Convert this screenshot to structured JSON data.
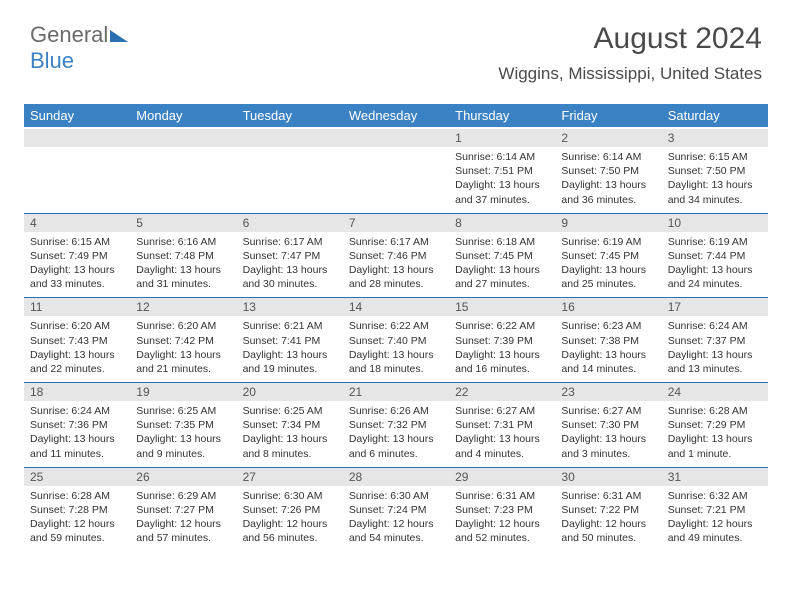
{
  "logo": {
    "part1": "General",
    "part2": "Blue"
  },
  "title": "August 2024",
  "subtitle": "Wiggins, Mississippi, United States",
  "colors": {
    "header_bg": "#3b82c4",
    "header_fg": "#ffffff",
    "daynum_bg": "#e6e6e6",
    "row_border": "#2a6fb0",
    "text": "#333333",
    "title": "#4a4a4a"
  },
  "font": {
    "family": "Arial",
    "th_size": 13,
    "body_size": 10.5,
    "title_size": 30,
    "subtitle_size": 17
  },
  "day_headers": [
    "Sunday",
    "Monday",
    "Tuesday",
    "Wednesday",
    "Thursday",
    "Friday",
    "Saturday"
  ],
  "weeks": [
    [
      {
        "n": "",
        "lines": []
      },
      {
        "n": "",
        "lines": []
      },
      {
        "n": "",
        "lines": []
      },
      {
        "n": "",
        "lines": []
      },
      {
        "n": "1",
        "lines": [
          "Sunrise: 6:14 AM",
          "Sunset: 7:51 PM",
          "Daylight: 13 hours and 37 minutes."
        ]
      },
      {
        "n": "2",
        "lines": [
          "Sunrise: 6:14 AM",
          "Sunset: 7:50 PM",
          "Daylight: 13 hours and 36 minutes."
        ]
      },
      {
        "n": "3",
        "lines": [
          "Sunrise: 6:15 AM",
          "Sunset: 7:50 PM",
          "Daylight: 13 hours and 34 minutes."
        ]
      }
    ],
    [
      {
        "n": "4",
        "lines": [
          "Sunrise: 6:15 AM",
          "Sunset: 7:49 PM",
          "Daylight: 13 hours and 33 minutes."
        ]
      },
      {
        "n": "5",
        "lines": [
          "Sunrise: 6:16 AM",
          "Sunset: 7:48 PM",
          "Daylight: 13 hours and 31 minutes."
        ]
      },
      {
        "n": "6",
        "lines": [
          "Sunrise: 6:17 AM",
          "Sunset: 7:47 PM",
          "Daylight: 13 hours and 30 minutes."
        ]
      },
      {
        "n": "7",
        "lines": [
          "Sunrise: 6:17 AM",
          "Sunset: 7:46 PM",
          "Daylight: 13 hours and 28 minutes."
        ]
      },
      {
        "n": "8",
        "lines": [
          "Sunrise: 6:18 AM",
          "Sunset: 7:45 PM",
          "Daylight: 13 hours and 27 minutes."
        ]
      },
      {
        "n": "9",
        "lines": [
          "Sunrise: 6:19 AM",
          "Sunset: 7:45 PM",
          "Daylight: 13 hours and 25 minutes."
        ]
      },
      {
        "n": "10",
        "lines": [
          "Sunrise: 6:19 AM",
          "Sunset: 7:44 PM",
          "Daylight: 13 hours and 24 minutes."
        ]
      }
    ],
    [
      {
        "n": "11",
        "lines": [
          "Sunrise: 6:20 AM",
          "Sunset: 7:43 PM",
          "Daylight: 13 hours and 22 minutes."
        ]
      },
      {
        "n": "12",
        "lines": [
          "Sunrise: 6:20 AM",
          "Sunset: 7:42 PM",
          "Daylight: 13 hours and 21 minutes."
        ]
      },
      {
        "n": "13",
        "lines": [
          "Sunrise: 6:21 AM",
          "Sunset: 7:41 PM",
          "Daylight: 13 hours and 19 minutes."
        ]
      },
      {
        "n": "14",
        "lines": [
          "Sunrise: 6:22 AM",
          "Sunset: 7:40 PM",
          "Daylight: 13 hours and 18 minutes."
        ]
      },
      {
        "n": "15",
        "lines": [
          "Sunrise: 6:22 AM",
          "Sunset: 7:39 PM",
          "Daylight: 13 hours and 16 minutes."
        ]
      },
      {
        "n": "16",
        "lines": [
          "Sunrise: 6:23 AM",
          "Sunset: 7:38 PM",
          "Daylight: 13 hours and 14 minutes."
        ]
      },
      {
        "n": "17",
        "lines": [
          "Sunrise: 6:24 AM",
          "Sunset: 7:37 PM",
          "Daylight: 13 hours and 13 minutes."
        ]
      }
    ],
    [
      {
        "n": "18",
        "lines": [
          "Sunrise: 6:24 AM",
          "Sunset: 7:36 PM",
          "Daylight: 13 hours and 11 minutes."
        ]
      },
      {
        "n": "19",
        "lines": [
          "Sunrise: 6:25 AM",
          "Sunset: 7:35 PM",
          "Daylight: 13 hours and 9 minutes."
        ]
      },
      {
        "n": "20",
        "lines": [
          "Sunrise: 6:25 AM",
          "Sunset: 7:34 PM",
          "Daylight: 13 hours and 8 minutes."
        ]
      },
      {
        "n": "21",
        "lines": [
          "Sunrise: 6:26 AM",
          "Sunset: 7:32 PM",
          "Daylight: 13 hours and 6 minutes."
        ]
      },
      {
        "n": "22",
        "lines": [
          "Sunrise: 6:27 AM",
          "Sunset: 7:31 PM",
          "Daylight: 13 hours and 4 minutes."
        ]
      },
      {
        "n": "23",
        "lines": [
          "Sunrise: 6:27 AM",
          "Sunset: 7:30 PM",
          "Daylight: 13 hours and 3 minutes."
        ]
      },
      {
        "n": "24",
        "lines": [
          "Sunrise: 6:28 AM",
          "Sunset: 7:29 PM",
          "Daylight: 13 hours and 1 minute."
        ]
      }
    ],
    [
      {
        "n": "25",
        "lines": [
          "Sunrise: 6:28 AM",
          "Sunset: 7:28 PM",
          "Daylight: 12 hours and 59 minutes."
        ]
      },
      {
        "n": "26",
        "lines": [
          "Sunrise: 6:29 AM",
          "Sunset: 7:27 PM",
          "Daylight: 12 hours and 57 minutes."
        ]
      },
      {
        "n": "27",
        "lines": [
          "Sunrise: 6:30 AM",
          "Sunset: 7:26 PM",
          "Daylight: 12 hours and 56 minutes."
        ]
      },
      {
        "n": "28",
        "lines": [
          "Sunrise: 6:30 AM",
          "Sunset: 7:24 PM",
          "Daylight: 12 hours and 54 minutes."
        ]
      },
      {
        "n": "29",
        "lines": [
          "Sunrise: 6:31 AM",
          "Sunset: 7:23 PM",
          "Daylight: 12 hours and 52 minutes."
        ]
      },
      {
        "n": "30",
        "lines": [
          "Sunrise: 6:31 AM",
          "Sunset: 7:22 PM",
          "Daylight: 12 hours and 50 minutes."
        ]
      },
      {
        "n": "31",
        "lines": [
          "Sunrise: 6:32 AM",
          "Sunset: 7:21 PM",
          "Daylight: 12 hours and 49 minutes."
        ]
      }
    ]
  ]
}
